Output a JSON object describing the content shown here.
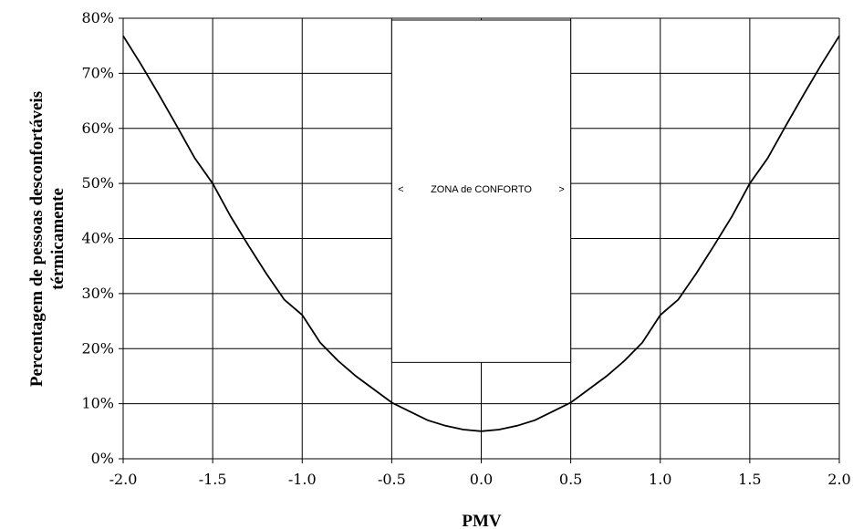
{
  "chart_data": {
    "type": "line",
    "title": "",
    "xlabel": "PMV",
    "ylabel_line1": "Percentagem de pessoas desconfortáveis",
    "ylabel_line2": "térmicamente",
    "xlim": [
      -2.0,
      2.0
    ],
    "ylim": [
      0,
      80
    ],
    "x_ticks": [
      "-2.0",
      "-1.5",
      "-1.0",
      "-0.5",
      "0.0",
      "0.5",
      "1.0",
      "1.5",
      "2.0"
    ],
    "y_ticks": [
      "0%",
      "10%",
      "20%",
      "30%",
      "40%",
      "50%",
      "60%",
      "70%",
      "80%"
    ],
    "grid": true,
    "series": [
      {
        "x": [
          -2.0,
          -1.9,
          -1.8,
          -1.7,
          -1.6,
          -1.5,
          -1.4,
          -1.3,
          -1.2,
          -1.1,
          -1.0,
          -0.9,
          -0.8,
          -0.7,
          -0.6,
          -0.5,
          -0.4,
          -0.3,
          -0.2,
          -0.1,
          0.0,
          0.1,
          0.2,
          0.3,
          0.4,
          0.5,
          0.6,
          0.7,
          0.8,
          0.9,
          1.0,
          1.1,
          1.2,
          1.3,
          1.4,
          1.5,
          1.6,
          1.7,
          1.8,
          1.9,
          2.0
        ],
        "y": [
          76.8,
          71.6,
          66.1,
          60.4,
          54.6,
          50.0,
          44.0,
          38.7,
          33.6,
          28.9,
          26.1,
          21.1,
          17.8,
          15.0,
          12.6,
          10.2,
          8.6,
          7.0,
          6.0,
          5.3,
          5.0,
          5.3,
          6.0,
          7.0,
          8.6,
          10.2,
          12.6,
          15.0,
          17.8,
          21.1,
          26.1,
          28.9,
          33.6,
          38.7,
          44.0,
          50.0,
          54.6,
          60.4,
          66.1,
          71.6,
          76.8
        ]
      }
    ],
    "annotation": {
      "text": "ZONA de CONFORTO",
      "arrow_left": "<",
      "arrow_right": ">",
      "x_range": [
        -0.5,
        0.5
      ],
      "y_range": [
        17.5,
        80
      ]
    }
  }
}
